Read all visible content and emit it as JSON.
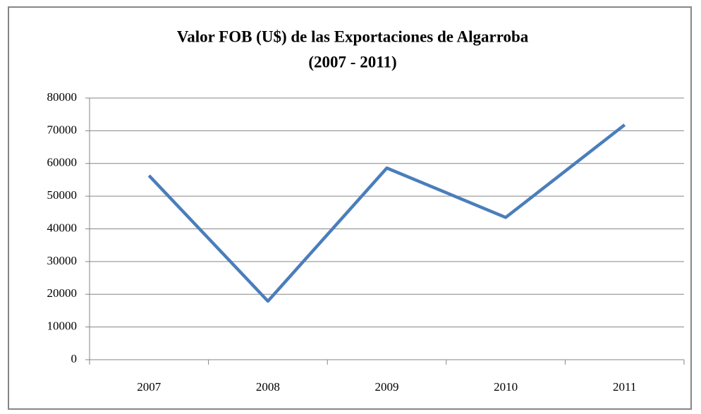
{
  "chart_data": {
    "type": "line",
    "title": [
      "Valor FOB (U$) de las Exportaciones de Algarroba",
      "(2007 - 2011)"
    ],
    "categories": [
      "2007",
      "2008",
      "2009",
      "2010",
      "2011"
    ],
    "series": [
      {
        "name": "Valor FOB",
        "color": "#4a7ebb",
        "values": [
          56300,
          17900,
          58600,
          43500,
          71800
        ]
      }
    ],
    "ylim": [
      0,
      80000
    ],
    "yticks": [
      0,
      10000,
      20000,
      30000,
      40000,
      50000,
      60000,
      70000,
      80000
    ],
    "grid": true
  }
}
